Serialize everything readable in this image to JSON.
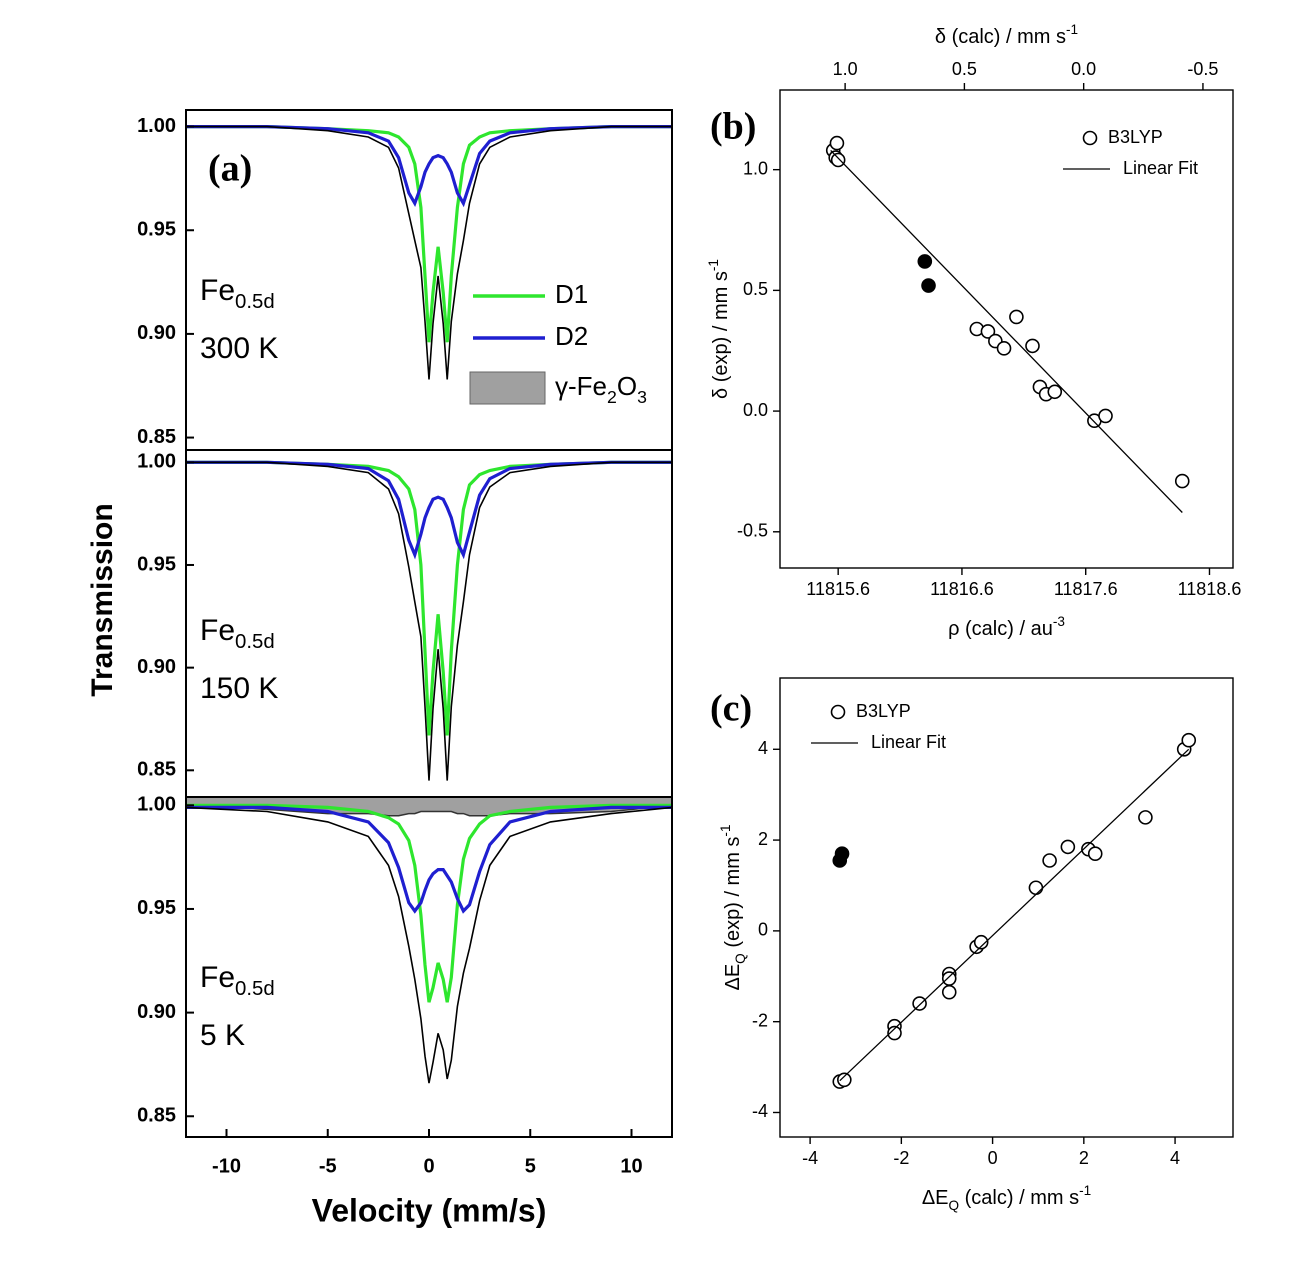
{
  "chart_data": [
    {
      "type": "line",
      "label": "(a)",
      "x": [
        -12,
        -8,
        -5,
        -3,
        -2,
        -1.5,
        -1,
        -0.7,
        -0.4,
        -0.2,
        0,
        0.2,
        0.45,
        0.7,
        0.9,
        1.1,
        1.4,
        1.7,
        2,
        2.5,
        3,
        4,
        6,
        9,
        12
      ],
      "xlim": [
        -12,
        12
      ],
      "xticks": [
        -10,
        -5,
        0,
        5,
        10
      ],
      "xlabel": "Velocity (mm/s)",
      "ylabel": "Transmission",
      "legend": [
        {
          "name": "D1",
          "color": "#2ee62e"
        },
        {
          "name": "D2",
          "color": "#1f1fd0"
        },
        {
          "name": [
            {
              "text": "γ-Fe"
            },
            {
              "text": "2",
              "shift": "sub"
            },
            {
              "text": "O"
            },
            {
              "text": "3",
              "shift": "sub"
            }
          ],
          "color": "#a0a0a0",
          "fill": true
        }
      ],
      "panels": [
        {
          "sample": [
            {
              "text": "Fe"
            },
            {
              "text": "0.5d",
              "shift": "sub"
            }
          ],
          "temperature": "300 K",
          "ylim": [
            0.844,
            1.008
          ],
          "yticks": [
            0.85,
            {
              "value": 0.9,
              "label": "0.90"
            },
            0.95,
            {
              "value": 1,
              "label": "1.00"
            }
          ],
          "series": [
            {
              "color": "#2ee62e",
              "values": [
                1.0,
                1.0,
                0.999,
                0.998,
                0.997,
                0.995,
                0.99,
                0.982,
                0.961,
                0.928,
                0.896,
                0.92,
                0.942,
                0.92,
                0.896,
                0.928,
                0.961,
                0.982,
                0.991,
                0.995,
                0.997,
                0.998,
                0.999,
                1.0,
                1.0
              ]
            },
            {
              "color": "#1f1fd0",
              "values": [
                1.0,
                1.0,
                0.999,
                0.997,
                0.993,
                0.985,
                0.968,
                0.963,
                0.971,
                0.978,
                0.982,
                0.985,
                0.986,
                0.985,
                0.982,
                0.978,
                0.968,
                0.963,
                0.972,
                0.987,
                0.993,
                0.997,
                0.999,
                1.0,
                1.0
              ]
            },
            {
              "color": "#000000",
              "values": [
                1.0,
                1.0,
                0.998,
                0.995,
                0.99,
                0.98,
                0.958,
                0.945,
                0.932,
                0.906,
                0.878,
                0.905,
                0.928,
                0.905,
                0.878,
                0.906,
                0.929,
                0.945,
                0.963,
                0.982,
                0.99,
                0.995,
                0.998,
                1.0,
                1.0
              ]
            }
          ]
        },
        {
          "sample": [
            {
              "text": "Fe"
            },
            {
              "text": "0.5d",
              "shift": "sub"
            }
          ],
          "temperature": "150 K",
          "ylim": [
            0.837,
            1.006
          ],
          "yticks": [
            0.85,
            {
              "value": 0.9,
              "label": "0.90"
            },
            0.95,
            {
              "value": 1,
              "label": "1.00"
            }
          ],
          "series": [
            {
              "color": "#2ee62e",
              "values": [
                1.0,
                1.0,
                0.999,
                0.998,
                0.996,
                0.993,
                0.987,
                0.977,
                0.95,
                0.908,
                0.867,
                0.898,
                0.926,
                0.898,
                0.867,
                0.908,
                0.95,
                0.977,
                0.989,
                0.994,
                0.996,
                0.998,
                0.999,
                1.0,
                1.0
              ]
            },
            {
              "color": "#1f1fd0",
              "values": [
                1.0,
                1.0,
                0.999,
                0.997,
                0.991,
                0.982,
                0.962,
                0.955,
                0.965,
                0.973,
                0.978,
                0.982,
                0.983,
                0.982,
                0.978,
                0.973,
                0.961,
                0.955,
                0.966,
                0.984,
                0.992,
                0.997,
                0.999,
                1.0,
                1.0
              ]
            },
            {
              "color": "#000000",
              "values": [
                1.0,
                1.0,
                0.998,
                0.995,
                0.987,
                0.975,
                0.949,
                0.932,
                0.915,
                0.881,
                0.845,
                0.88,
                0.909,
                0.88,
                0.845,
                0.881,
                0.911,
                0.932,
                0.955,
                0.978,
                0.988,
                0.995,
                0.998,
                1.0,
                1.0
              ]
            }
          ]
        },
        {
          "sample": [
            {
              "text": "Fe"
            },
            {
              "text": "0.5d",
              "shift": "sub"
            }
          ],
          "temperature": "5 K",
          "ylim": [
            0.84,
            1.004
          ],
          "yticks": [
            0.85,
            {
              "value": 0.9,
              "label": "0.90"
            },
            0.95,
            {
              "value": 1,
              "label": "1.00"
            }
          ],
          "series": [
            {
              "color": "#a0a0a0",
              "fill": true,
              "values": [
                1.0,
                0.998,
                0.996,
                0.996,
                0.995,
                0.995,
                0.996,
                0.996,
                0.997,
                0.997,
                0.997,
                0.997,
                0.997,
                0.997,
                0.997,
                0.997,
                0.996,
                0.996,
                0.995,
                0.995,
                0.995,
                0.996,
                0.996,
                0.997,
                1.0
              ]
            },
            {
              "color": "#2ee62e",
              "values": [
                1.0,
                1.0,
                0.999,
                0.997,
                0.994,
                0.991,
                0.983,
                0.971,
                0.947,
                0.923,
                0.905,
                0.912,
                0.924,
                0.916,
                0.905,
                0.917,
                0.952,
                0.974,
                0.984,
                0.991,
                0.995,
                0.997,
                0.999,
                1.0,
                1.0
              ]
            },
            {
              "color": "#1f1fd0",
              "values": [
                0.999,
                0.999,
                0.997,
                0.992,
                0.982,
                0.97,
                0.953,
                0.949,
                0.953,
                0.959,
                0.964,
                0.967,
                0.969,
                0.969,
                0.966,
                0.963,
                0.955,
                0.949,
                0.952,
                0.968,
                0.981,
                0.992,
                0.997,
                0.999,
                0.999
              ]
            },
            {
              "color": "#000000",
              "values": [
                0.999,
                0.997,
                0.992,
                0.985,
                0.971,
                0.956,
                0.932,
                0.916,
                0.897,
                0.879,
                0.866,
                0.876,
                0.89,
                0.882,
                0.868,
                0.877,
                0.903,
                0.919,
                0.931,
                0.954,
                0.971,
                0.985,
                0.992,
                0.996,
                0.999
              ]
            }
          ]
        }
      ]
    },
    {
      "type": "scatter",
      "label": "(b)",
      "xlim": [
        11815.13,
        11818.79
      ],
      "xticks": [
        11815.6,
        11816.6,
        11817.6,
        11818.6
      ],
      "x2lim": [
        1.273,
        -0.626
      ],
      "x2ticks": [
        {
          "value": 1,
          "label": "1.0"
        },
        0.5,
        {
          "value": 0,
          "label": "0.0"
        },
        -0.5
      ],
      "ylim": [
        -0.65,
        1.33
      ],
      "yticks": [
        -0.5,
        {
          "value": 0,
          "label": "0.0"
        },
        0.5,
        {
          "value": 1,
          "label": "1.0"
        }
      ],
      "xlabel": [
        {
          "text": "ρ (calc) / au"
        },
        {
          "text": "-3",
          "shift": "super"
        }
      ],
      "x2label": [
        {
          "text": "δ (calc) / mm s"
        },
        {
          "text": "-1",
          "shift": "super"
        }
      ],
      "ylabel": [
        {
          "text": "δ (exp) / mm s"
        },
        {
          "text": "-1",
          "shift": "super"
        }
      ],
      "series": [
        {
          "name": "B3LYP",
          "marker": "open",
          "x": [
            11815.56,
            11815.59,
            11815.58,
            11815.6,
            11816.72,
            11816.81,
            11816.87,
            11816.94,
            11817.04,
            11817.17,
            11817.23,
            11817.28,
            11817.35,
            11817.67,
            11817.76,
            11818.38
          ],
          "values": [
            1.08,
            1.11,
            1.05,
            1.04,
            0.34,
            0.33,
            0.29,
            0.26,
            0.39,
            0.27,
            0.1,
            0.07,
            0.08,
            -0.04,
            -0.02,
            -0.29
          ]
        },
        {
          "marker": "filled",
          "x": [
            11816.3,
            11816.33
          ],
          "values": [
            0.62,
            0.52
          ]
        },
        {
          "name": "Linear Fit",
          "marker": "line",
          "x": [
            11815.54,
            11818.38
          ],
          "values": [
            1.08,
            -0.42
          ]
        }
      ]
    },
    {
      "type": "scatter",
      "label": "(c)",
      "xlim": [
        -4.66,
        5.27
      ],
      "xticks": [
        -4,
        -2,
        0,
        2,
        4
      ],
      "ylim": [
        -4.54,
        5.57
      ],
      "yticks": [
        -4,
        -2,
        0,
        2,
        4
      ],
      "xlabel": [
        {
          "text": "ΔE"
        },
        {
          "text": "Q",
          "shift": "sub"
        },
        {
          "text": " (calc) / mm s"
        },
        {
          "text": "-1",
          "shift": "super"
        }
      ],
      "ylabel": [
        {
          "text": "ΔE"
        },
        {
          "text": "Q",
          "shift": "sub"
        },
        {
          "text": " (exp) / mm s"
        },
        {
          "text": "-1",
          "shift": "super"
        }
      ],
      "series": [
        {
          "name": "B3LYP",
          "marker": "open",
          "x": [
            -3.35,
            -3.25,
            -2.15,
            -2.15,
            -1.6,
            -0.95,
            -0.95,
            -0.95,
            -0.35,
            -0.25,
            0.95,
            1.25,
            1.65,
            2.1,
            2.25,
            3.35,
            4.2,
            4.3
          ],
          "values": [
            -3.32,
            -3.28,
            -2.1,
            -2.25,
            -1.6,
            -0.95,
            -1.05,
            -1.35,
            -0.35,
            -0.25,
            0.95,
            1.55,
            1.85,
            1.8,
            1.7,
            2.5,
            4.0,
            4.2
          ]
        },
        {
          "marker": "filled",
          "x": [
            -3.3,
            -3.35
          ],
          "values": [
            1.7,
            1.55
          ]
        },
        {
          "name": "Linear Fit",
          "marker": "line",
          "x": [
            -3.35,
            4.3
          ],
          "values": [
            -3.3,
            4.0
          ]
        }
      ]
    }
  ]
}
